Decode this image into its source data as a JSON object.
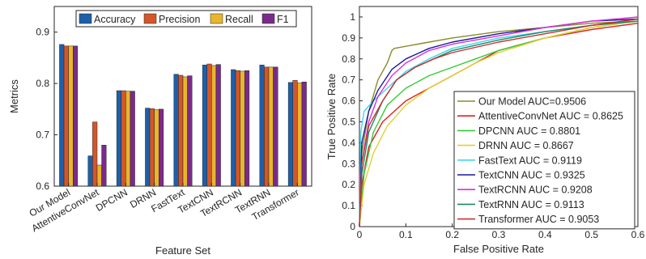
{
  "chart_data": [
    {
      "type": "bar",
      "title": "",
      "xlabel": "Feature Set",
      "ylabel": "Metrics",
      "ylim": [
        0.6,
        0.95
      ],
      "yticks": [
        "0.6",
        "0.7",
        "0.8",
        "0.9"
      ],
      "categories": [
        "Our Model",
        "AttentiveConvNet",
        "DPCNN",
        "DRNN",
        "FastText",
        "TextCNN",
        "TextRCNN",
        "TextRNN",
        "Transformer"
      ],
      "legend_position": "top",
      "series": [
        {
          "name": "Accuracy",
          "color": "#1f5fa8",
          "values": [
            0.876,
            0.659,
            0.786,
            0.752,
            0.818,
            0.836,
            0.827,
            0.836,
            0.802
          ]
        },
        {
          "name": "Precision",
          "color": "#d4562a",
          "values": [
            0.873,
            0.725,
            0.786,
            0.751,
            0.816,
            0.838,
            0.825,
            0.832,
            0.806
          ]
        },
        {
          "name": "Recall",
          "color": "#e8b62c",
          "values": [
            0.873,
            0.641,
            0.785,
            0.749,
            0.813,
            0.835,
            0.824,
            0.832,
            0.801
          ]
        },
        {
          "name": "F1",
          "color": "#7b2a8c",
          "values": [
            0.873,
            0.68,
            0.785,
            0.75,
            0.815,
            0.837,
            0.825,
            0.832,
            0.803
          ]
        }
      ],
      "grid": false
    },
    {
      "type": "line",
      "title": "",
      "xlabel": "False Positive Rate",
      "ylabel": "True Positive Rate",
      "xlim": [
        0,
        0.6
      ],
      "ylim": [
        0,
        1.05
      ],
      "xticks": [
        "0",
        "0.1",
        "0.2",
        "0.3",
        "0.4",
        "0.5",
        "0.6"
      ],
      "yticks": [
        "0",
        "0.1",
        "0.2",
        "0.3",
        "0.4",
        "0.5",
        "0.6",
        "0.7",
        "0.8",
        "0.9",
        "1"
      ],
      "legend_position": "bottom-right",
      "grid": false,
      "series": [
        {
          "name": "Our Model AUC=0.9506",
          "color": "#8b8b2a",
          "x": [
            0,
            0.005,
            0.02,
            0.04,
            0.06,
            0.07,
            0.075,
            0.1,
            0.15,
            0.2,
            0.3,
            0.4,
            0.5,
            0.6
          ],
          "y": [
            0,
            0.35,
            0.55,
            0.7,
            0.78,
            0.84,
            0.85,
            0.86,
            0.88,
            0.9,
            0.93,
            0.95,
            0.97,
            0.98
          ]
        },
        {
          "name": "AttentiveConvNet AUC = 0.8625",
          "color": "#e02020",
          "x": [
            0,
            0.005,
            0.02,
            0.05,
            0.1,
            0.15,
            0.2,
            0.25,
            0.3,
            0.4,
            0.5,
            0.6
          ],
          "y": [
            0,
            0.2,
            0.38,
            0.5,
            0.6,
            0.66,
            0.72,
            0.78,
            0.84,
            0.9,
            0.94,
            0.97
          ]
        },
        {
          "name": "DPCNN AUC = 0.8801",
          "color": "#33cc33",
          "x": [
            0,
            0.01,
            0.03,
            0.06,
            0.1,
            0.15,
            0.2,
            0.25,
            0.3,
            0.4,
            0.5,
            0.6
          ],
          "y": [
            0,
            0.25,
            0.45,
            0.58,
            0.66,
            0.72,
            0.76,
            0.8,
            0.84,
            0.9,
            0.95,
            0.98
          ]
        },
        {
          "name": "DRNN AUC = 0.8667",
          "color": "#e0d030",
          "x": [
            0,
            0.01,
            0.03,
            0.06,
            0.1,
            0.15,
            0.2,
            0.25,
            0.3,
            0.4,
            0.5,
            0.6
          ],
          "y": [
            0,
            0.2,
            0.35,
            0.48,
            0.58,
            0.66,
            0.72,
            0.78,
            0.83,
            0.9,
            0.95,
            0.98
          ]
        },
        {
          "name": "FastText AUC = 0.9119",
          "color": "#40d8e8",
          "x": [
            0,
            0.003,
            0.01,
            0.03,
            0.06,
            0.1,
            0.15,
            0.2,
            0.3,
            0.4,
            0.5,
            0.6
          ],
          "y": [
            0,
            0.45,
            0.55,
            0.6,
            0.66,
            0.74,
            0.8,
            0.85,
            0.9,
            0.93,
            0.96,
            0.98
          ]
        },
        {
          "name": "TextCNN AUC = 0.9325",
          "color": "#1a1a9e",
          "x": [
            0,
            0.005,
            0.02,
            0.04,
            0.07,
            0.1,
            0.15,
            0.2,
            0.3,
            0.4,
            0.5,
            0.6
          ],
          "y": [
            0,
            0.4,
            0.55,
            0.65,
            0.75,
            0.8,
            0.85,
            0.88,
            0.92,
            0.95,
            0.98,
            0.99
          ]
        },
        {
          "name": "TextRCNN AUC = 0.9208",
          "color": "#d830d8",
          "x": [
            0,
            0.005,
            0.02,
            0.04,
            0.07,
            0.1,
            0.15,
            0.2,
            0.3,
            0.4,
            0.5,
            0.6
          ],
          "y": [
            0,
            0.3,
            0.5,
            0.62,
            0.72,
            0.78,
            0.84,
            0.87,
            0.91,
            0.95,
            0.98,
            1.0
          ]
        },
        {
          "name": "TextRNN AUC = 0.9113",
          "color": "#1a8a6a",
          "x": [
            0,
            0.005,
            0.02,
            0.05,
            0.08,
            0.12,
            0.16,
            0.2,
            0.3,
            0.4,
            0.5,
            0.6
          ],
          "y": [
            0,
            0.25,
            0.45,
            0.6,
            0.7,
            0.76,
            0.8,
            0.84,
            0.89,
            0.93,
            0.96,
            0.98
          ]
        },
        {
          "name": "Transformer AUC = 0.9053",
          "color": "#c83030",
          "x": [
            0,
            0.005,
            0.02,
            0.05,
            0.08,
            0.12,
            0.16,
            0.2,
            0.3,
            0.4,
            0.5,
            0.6
          ],
          "y": [
            0,
            0.3,
            0.48,
            0.6,
            0.7,
            0.76,
            0.8,
            0.83,
            0.88,
            0.92,
            0.96,
            0.99
          ]
        }
      ]
    }
  ]
}
